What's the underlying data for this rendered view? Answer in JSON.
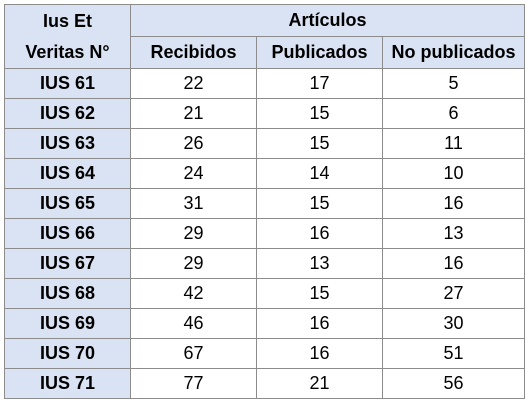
{
  "table": {
    "corner_header": [
      "Ius Et",
      "Veritas N°"
    ],
    "group_header": "Artículos",
    "columns": [
      "Recibidos",
      "Publicados",
      "No publicados"
    ],
    "rows": [
      {
        "label": "IUS 61",
        "values": [
          "22",
          "17",
          "5"
        ]
      },
      {
        "label": "IUS 62",
        "values": [
          "21",
          "15",
          "6"
        ]
      },
      {
        "label": "IUS 63",
        "values": [
          "26",
          "15",
          "11"
        ]
      },
      {
        "label": "IUS 64",
        "values": [
          "24",
          "14",
          "10"
        ]
      },
      {
        "label": "IUS 65",
        "values": [
          "31",
          "15",
          "16"
        ]
      },
      {
        "label": "IUS 66",
        "values": [
          "29",
          "16",
          "13"
        ]
      },
      {
        "label": "IUS 67",
        "values": [
          "29",
          "13",
          "16"
        ]
      },
      {
        "label": "IUS 68",
        "values": [
          "42",
          "15",
          "27"
        ]
      },
      {
        "label": "IUS 69",
        "values": [
          "46",
          "16",
          "30"
        ]
      },
      {
        "label": "IUS 70",
        "values": [
          "67",
          "16",
          "51"
        ]
      },
      {
        "label": "IUS 71",
        "values": [
          "77",
          "21",
          "56"
        ]
      }
    ]
  },
  "colors": {
    "header_fill": "#dae3f3",
    "border": "#8c8c8c"
  }
}
